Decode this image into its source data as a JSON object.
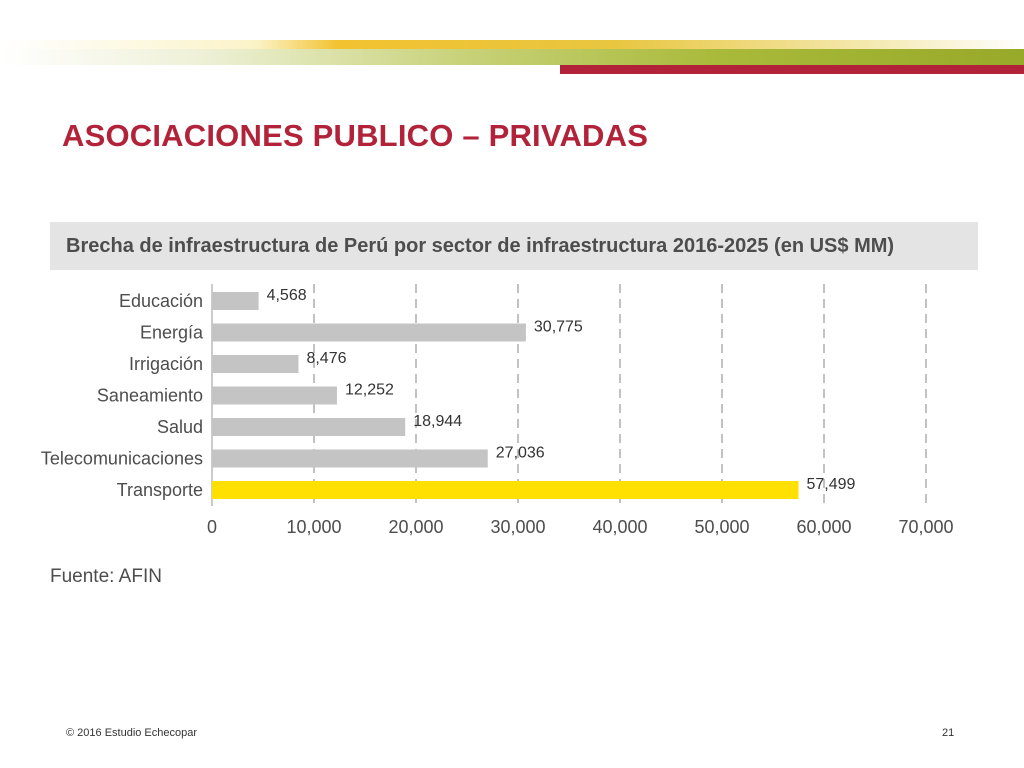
{
  "slide": {
    "title": "ASOCIACIONES PUBLICO – PRIVADAS",
    "source": "Fuente: AFIN",
    "footer_left": "© 2016 Estudio Echecopar",
    "page_number": "21"
  },
  "colors": {
    "title": "#b2233a",
    "bar_default": "#c4c4c4",
    "bar_highlight": "#ffe000",
    "header_band": "#e4e4e4",
    "accent_red": "#b2233a"
  },
  "chart_data": {
    "type": "bar",
    "orientation": "horizontal",
    "title": "Brecha de infraestructura de Perú por sector de infraestructura 2016-2025 (en US$ MM)",
    "categories": [
      "Educación",
      "Energía",
      "Irrigación",
      "Saneamiento",
      "Salud",
      "Telecomunicaciones",
      "Transporte"
    ],
    "values": [
      4568,
      30775,
      8476,
      12252,
      18944,
      27036,
      57499
    ],
    "value_labels": [
      "4,568",
      "30,775",
      "8,476",
      "12,252",
      "18,944",
      "27,036",
      "57,499"
    ],
    "highlight": "Transporte",
    "xlim": [
      0,
      70000
    ],
    "xticks": [
      0,
      10000,
      20000,
      30000,
      40000,
      50000,
      60000,
      70000
    ],
    "xtick_labels": [
      "0",
      "10,000",
      "20,000",
      "30,000",
      "40,000",
      "50,000",
      "60,000",
      "70,000"
    ],
    "grid": "vertical-dashed",
    "xlabel": "",
    "ylabel": ""
  }
}
